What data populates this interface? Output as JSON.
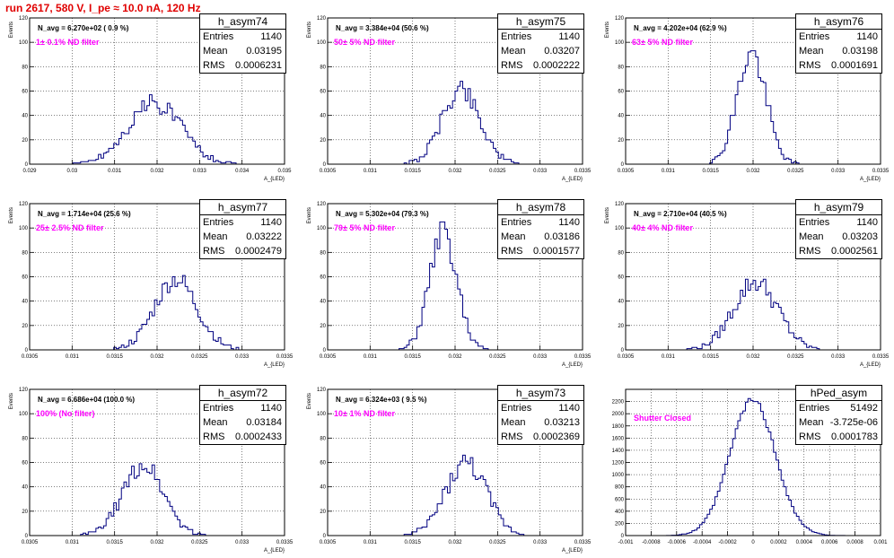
{
  "canvas_title": "run 2617,   580 V, I_pe ≈ 10.0 nA, 120 Hz",
  "stat_labels": {
    "entries": "Entries",
    "mean": "Mean",
    "rms": "RMS"
  },
  "chart_data": [
    {
      "type": "bar",
      "name": "h_asym74",
      "navg": "N_avg = 6.270e+02 ( 0.9 %)",
      "filter": "1± 0.1% ND filter",
      "entries": "1140",
      "mean": "0.03195",
      "rms": "0.0006231",
      "xlabel": "A_{LED}",
      "ylabel": "Events",
      "xlim": [
        0.029,
        0.035
      ],
      "ylim": [
        0,
        120
      ],
      "xticks": [
        "0.029",
        "0.03",
        "0.031",
        "0.032",
        "0.033",
        "0.034",
        "0.035"
      ],
      "yticks": [
        "0",
        "20",
        "40",
        "60",
        "80",
        "100",
        "120"
      ],
      "center": 0.03195,
      "sigma": 0.00063,
      "peak": 50,
      "seed": 74
    },
    {
      "type": "bar",
      "name": "h_asym75",
      "navg": "N_avg = 3.384e+04 (50.6 %)",
      "filter": "50± 5% ND filter",
      "entries": "1140",
      "mean": "0.03207",
      "rms": "0.0002222",
      "xlabel": "A_{LED}",
      "ylabel": "Events",
      "xlim": [
        0.0305,
        0.0335
      ],
      "ylim": [
        0,
        120
      ],
      "xticks": [
        "0.0305",
        "0.031",
        "0.0315",
        "0.032",
        "0.0325",
        "0.033",
        "0.0335"
      ],
      "yticks": [
        "0",
        "20",
        "40",
        "60",
        "80",
        "100",
        "120"
      ],
      "center": 0.03207,
      "sigma": 0.00022,
      "peak": 62,
      "seed": 75
    },
    {
      "type": "bar",
      "name": "h_asym76",
      "navg": "N_avg = 4.202e+04 (62.9 %)",
      "filter": "63± 5% ND filter",
      "entries": "1140",
      "mean": "0.03198",
      "rms": "0.0001691",
      "xlabel": "A_{LED}",
      "ylabel": "Events",
      "xlim": [
        0.0305,
        0.0335
      ],
      "ylim": [
        0,
        120
      ],
      "xticks": [
        "0.0305",
        "0.031",
        "0.0315",
        "0.032",
        "0.0325",
        "0.033",
        "0.0335"
      ],
      "yticks": [
        "0",
        "20",
        "40",
        "60",
        "80",
        "100",
        "120"
      ],
      "center": 0.03198,
      "sigma": 0.00017,
      "peak": 91,
      "seed": 76
    },
    {
      "type": "bar",
      "name": "h_asym77",
      "navg": "N_avg = 1.714e+04 (25.6 %)",
      "filter": "25± 2.5% ND filter",
      "entries": "1140",
      "mean": "0.03222",
      "rms": "0.0002479",
      "xlabel": "A_{LED}",
      "ylabel": "Events",
      "xlim": [
        0.0305,
        0.0335
      ],
      "ylim": [
        0,
        120
      ],
      "xticks": [
        "0.0305",
        "0.031",
        "0.0315",
        "0.032",
        "0.0325",
        "0.033",
        "0.0335"
      ],
      "yticks": [
        "0",
        "20",
        "40",
        "60",
        "80",
        "100",
        "120"
      ],
      "center": 0.03222,
      "sigma": 0.00025,
      "peak": 58,
      "seed": 77
    },
    {
      "type": "bar",
      "name": "h_asym78",
      "navg": "N_avg = 5.302e+04 (79.3 %)",
      "filter": "79± 5% ND filter",
      "entries": "1140",
      "mean": "0.03186",
      "rms": "0.0001577",
      "xlabel": "A_{LED}",
      "ylabel": "Events",
      "xlim": [
        0.0305,
        0.0335
      ],
      "ylim": [
        0,
        120
      ],
      "xticks": [
        "0.0305",
        "0.031",
        "0.0315",
        "0.032",
        "0.0325",
        "0.033",
        "0.0335"
      ],
      "yticks": [
        "0",
        "20",
        "40",
        "60",
        "80",
        "100",
        "120"
      ],
      "center": 0.03186,
      "sigma": 0.00016,
      "peak": 96,
      "seed": 78
    },
    {
      "type": "bar",
      "name": "h_asym79",
      "navg": "N_avg = 2.710e+04 (40.5 %)",
      "filter": "40± 4% ND filter",
      "entries": "1140",
      "mean": "0.03203",
      "rms": "0.0002561",
      "xlabel": "A_{LED}",
      "ylabel": "Events",
      "xlim": [
        0.0305,
        0.0335
      ],
      "ylim": [
        0,
        120
      ],
      "xticks": [
        "0.0305",
        "0.031",
        "0.0315",
        "0.032",
        "0.0325",
        "0.033",
        "0.0335"
      ],
      "yticks": [
        "0",
        "20",
        "40",
        "60",
        "80",
        "100",
        "120"
      ],
      "center": 0.03203,
      "sigma": 0.00026,
      "peak": 56,
      "seed": 79
    },
    {
      "type": "bar",
      "name": "h_asym72",
      "navg": "N_avg = 6.686e+04 (100.0 %)",
      "filter": "100% (No filter)",
      "entries": "1140",
      "mean": "0.03184",
      "rms": "0.0002433",
      "xlabel": "A_{LED}",
      "ylabel": "Events",
      "xlim": [
        0.0305,
        0.0335
      ],
      "ylim": [
        0,
        120
      ],
      "xticks": [
        "0.0305",
        "0.031",
        "0.0315",
        "0.032",
        "0.0325",
        "0.033",
        "0.0335"
      ],
      "yticks": [
        "0",
        "20",
        "40",
        "60",
        "80",
        "100",
        "120"
      ],
      "center": 0.03184,
      "sigma": 0.00024,
      "peak": 58,
      "seed": 72
    },
    {
      "type": "bar",
      "name": "h_asym73",
      "navg": "N_avg = 6.324e+03 ( 9.5 %)",
      "filter": "10± 1% ND filter",
      "entries": "1140",
      "mean": "0.03213",
      "rms": "0.0002369",
      "xlabel": "A_{LED}",
      "ylabel": "Events",
      "xlim": [
        0.0305,
        0.0335
      ],
      "ylim": [
        0,
        120
      ],
      "xticks": [
        "0.0305",
        "0.031",
        "0.0315",
        "0.032",
        "0.0325",
        "0.033",
        "0.0335"
      ],
      "yticks": [
        "0",
        "20",
        "40",
        "60",
        "80",
        "100",
        "120"
      ],
      "center": 0.03213,
      "sigma": 0.00024,
      "peak": 60,
      "seed": 73
    },
    {
      "type": "bar",
      "name": "hPed_asym",
      "navg": "",
      "filter": "Shutter Closed",
      "entries": "51492",
      "mean": "-3.725e-06",
      "rms": "0.0001783",
      "xlabel": "",
      "ylabel": "",
      "xlim": [
        -0.001,
        0.001
      ],
      "ylim": [
        0,
        2400
      ],
      "xticks": [
        "-0.001",
        "-0.0008",
        "-0.0006",
        "-0.0004",
        "-0.0002",
        "0",
        "0.0002",
        "0.0004",
        "0.0006",
        "0.0008",
        "0.001"
      ],
      "yticks": [
        "0",
        "200",
        "400",
        "600",
        "800",
        "1000",
        "1200",
        "1400",
        "1600",
        "1800",
        "2000",
        "2200"
      ],
      "center": -4e-06,
      "sigma": 0.000178,
      "peak": 2230,
      "seed": 99
    }
  ]
}
